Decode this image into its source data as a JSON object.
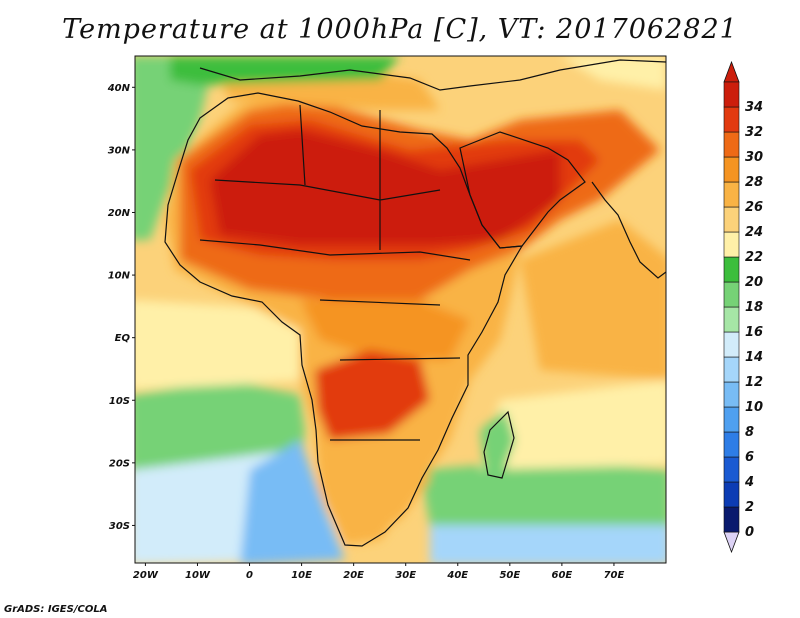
{
  "title": "Temperature at 1000hPa [C], VT: 2017062821",
  "credit": "GrADS: IGES/COLA",
  "map": {
    "lon_range": [
      -22,
      80
    ],
    "lat_range": [
      -36,
      45
    ],
    "lat_ticks": [
      {
        "value": 40,
        "label": "40N"
      },
      {
        "value": 30,
        "label": "30N"
      },
      {
        "value": 20,
        "label": "20N"
      },
      {
        "value": 10,
        "label": "10N"
      },
      {
        "value": 0,
        "label": "EQ"
      },
      {
        "value": -10,
        "label": "10S"
      },
      {
        "value": -20,
        "label": "20S"
      },
      {
        "value": -30,
        "label": "30S"
      }
    ],
    "lon_ticks": [
      {
        "value": -20,
        "label": "20W"
      },
      {
        "value": -10,
        "label": "10W"
      },
      {
        "value": 0,
        "label": "0"
      },
      {
        "value": 10,
        "label": "10E"
      },
      {
        "value": 20,
        "label": "20E"
      },
      {
        "value": 30,
        "label": "30E"
      },
      {
        "value": 40,
        "label": "40E"
      },
      {
        "value": 50,
        "label": "50E"
      },
      {
        "value": 60,
        "label": "60E"
      },
      {
        "value": 70,
        "label": "70E"
      }
    ]
  },
  "colorbar": {
    "unit": "C",
    "levels": [
      0,
      2,
      4,
      6,
      8,
      10,
      12,
      14,
      16,
      18,
      20,
      22,
      24,
      26,
      28,
      30,
      32,
      34
    ],
    "colors": [
      "#0a1a6e",
      "#0c3cb4",
      "#1a5ad2",
      "#2e7de6",
      "#4fa0f0",
      "#78bcf5",
      "#a5d6fa",
      "#d2ecfa",
      "#a6e6a6",
      "#76d276",
      "#3cbe3c",
      "#fff0a8",
      "#fcd27a",
      "#f9b345",
      "#f59422",
      "#ee6a16",
      "#e23a10",
      "#cc1e0c"
    ]
  }
}
